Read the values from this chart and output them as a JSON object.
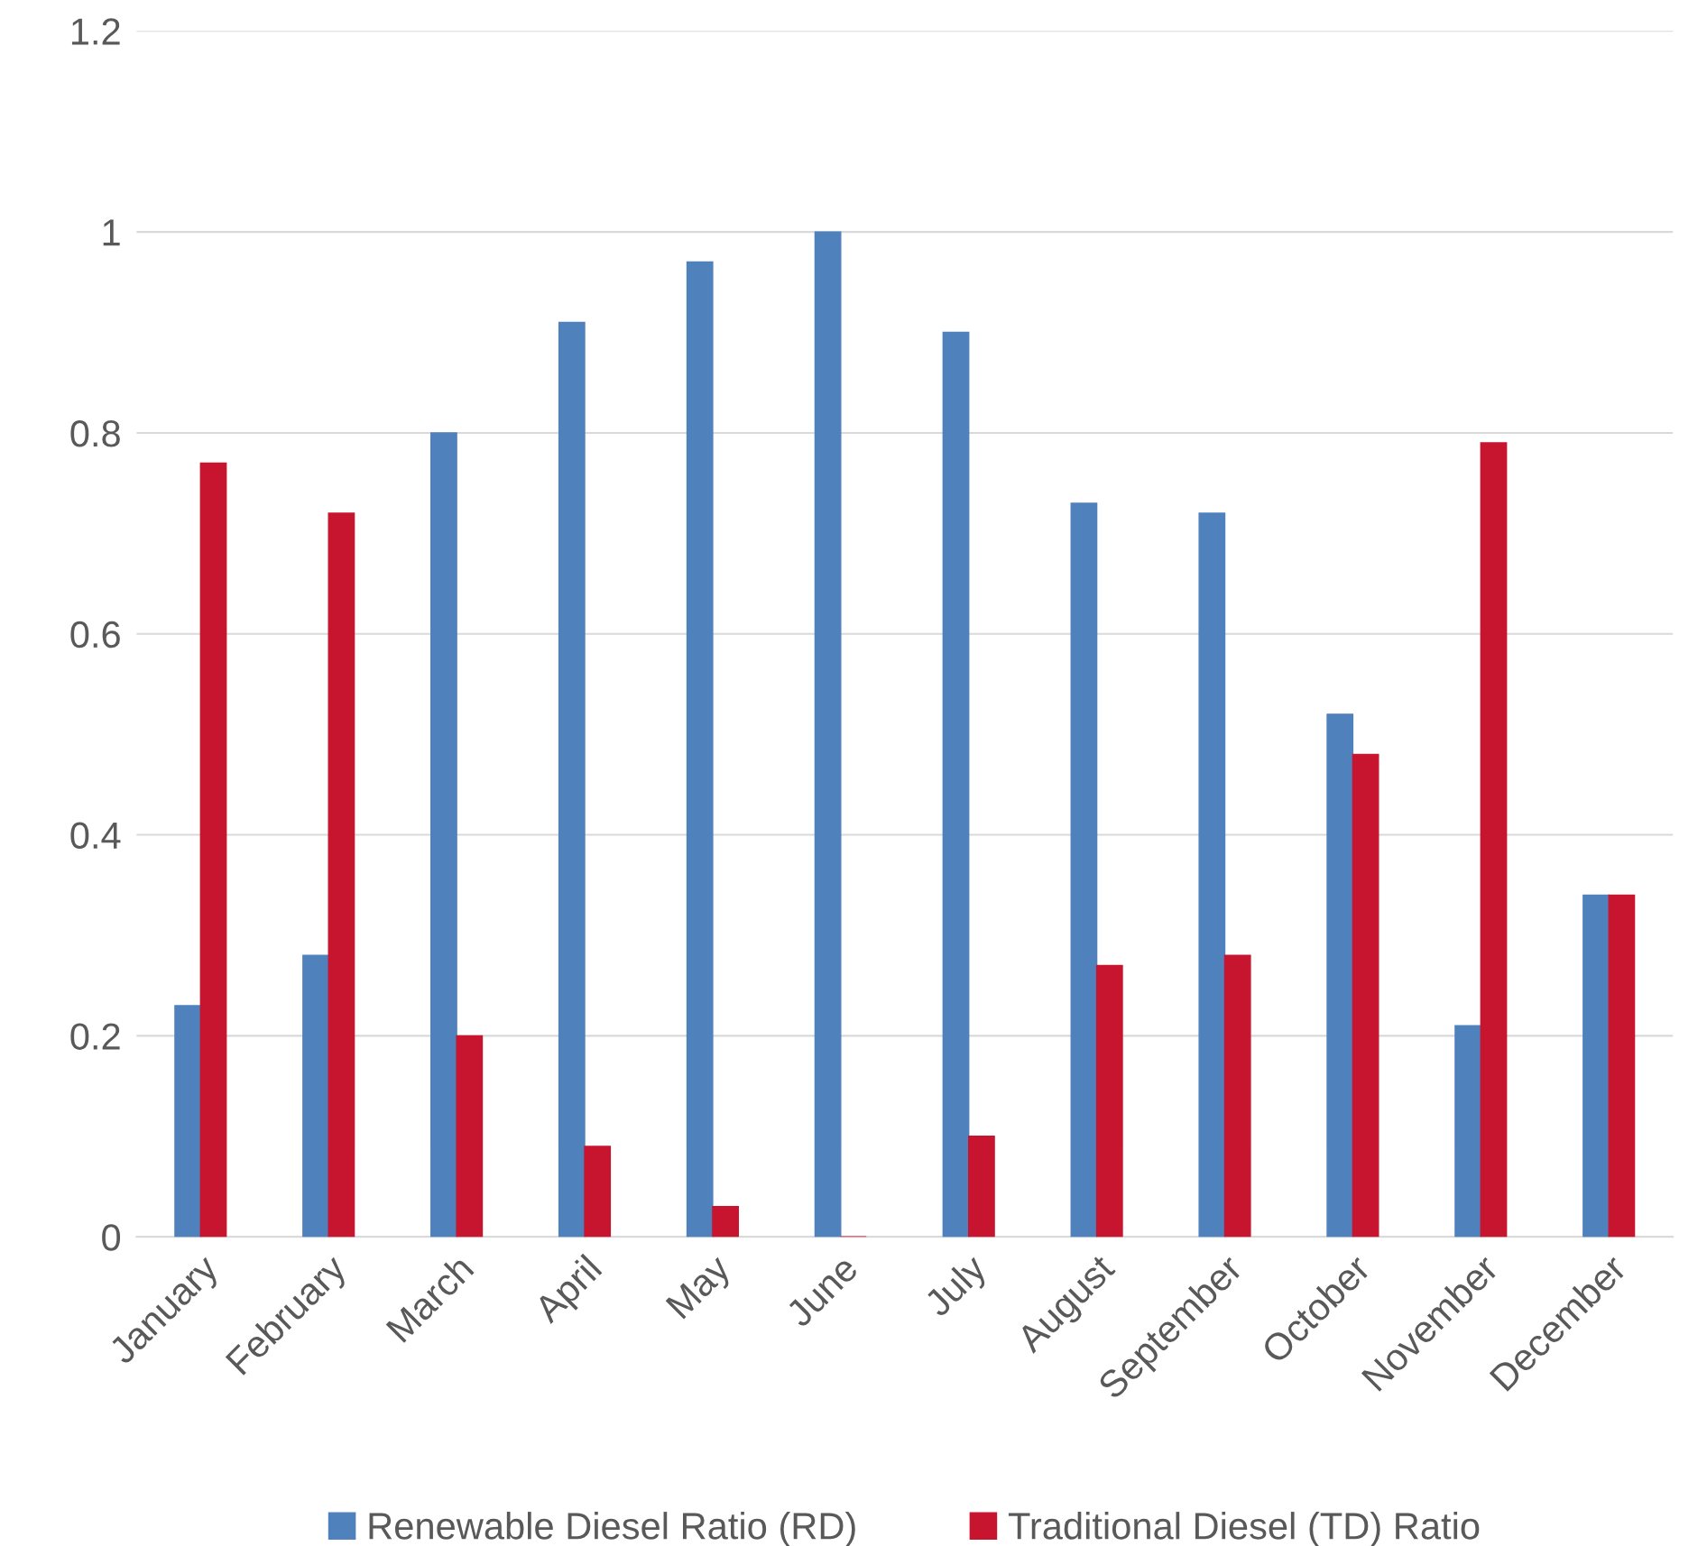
{
  "chart_data": {
    "type": "bar",
    "categories": [
      "January",
      "February",
      "March",
      "April",
      "May",
      "June",
      "July",
      "August",
      "September",
      "October",
      "November",
      "December"
    ],
    "series": [
      {
        "name": "Renewable Diesel Ratio (RD)",
        "color": "#4f81bd",
        "values": [
          0.23,
          0.28,
          0.8,
          0.91,
          0.97,
          1.0,
          0.9,
          0.73,
          0.72,
          0.52,
          0.21,
          0.34
        ]
      },
      {
        "name": "Traditional Diesel (TD) Ratio",
        "color": "#c8152f",
        "values": [
          0.77,
          0.72,
          0.2,
          0.09,
          0.03,
          0,
          0.1,
          0.27,
          0.28,
          0.48,
          0.79,
          0.34
        ]
      }
    ],
    "ylim": [
      0,
      1.2
    ],
    "yticks": [
      0,
      0.2,
      0.4,
      0.6,
      0.8,
      1,
      1.2
    ],
    "grid": "y",
    "legend": "bottom"
  }
}
